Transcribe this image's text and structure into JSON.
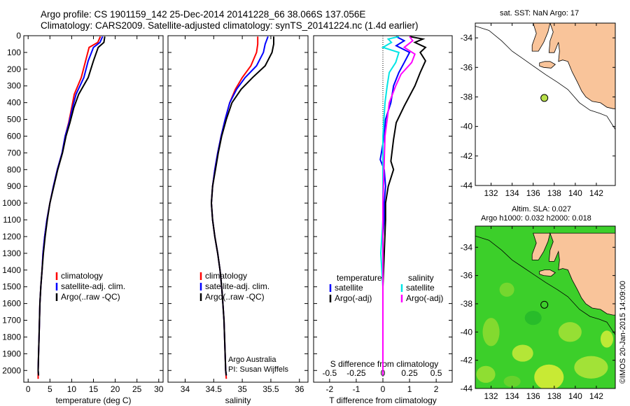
{
  "header": {
    "line1": "Argo profile: CS 1901159_142 25-Dec-2014 20141228_66 38.066S 137.056E",
    "line2": "Climatology: CARS2009. Satellite-adjusted climatology: synTS_20141224.nc (1.4d earlier)"
  },
  "credit": "©IMOS 20-Jan-2015 14:09:00",
  "colors": {
    "climatology": "#ff0000",
    "satellite": "#0000ff",
    "argo": "#000000",
    "cyan": "#00e5e5",
    "magenta": "#ff00ff",
    "land": "#f9c49a",
    "float": "#b8e04a"
  },
  "chart_data": [
    {
      "type": "line",
      "name": "temperature-profile",
      "xlabel": "temperature (deg C)",
      "xlim": [
        -1,
        31
      ],
      "ylim": [
        2070,
        0
      ],
      "xticks": [
        "0",
        "5",
        "10",
        "15",
        "20",
        "25",
        "30"
      ],
      "yticks": [
        "0",
        "100",
        "200",
        "300",
        "400",
        "500",
        "600",
        "700",
        "800",
        "900",
        "1000",
        "1100",
        "1200",
        "1300",
        "1400",
        "1500",
        "1600",
        "1700",
        "1800",
        "1900",
        "2000"
      ],
      "legend": [
        "climatology",
        "satellite-adj. clim.",
        "Argo(..raw -QC)"
      ],
      "series": [
        {
          "name": "climatology",
          "color": "#ff0000",
          "points": [
            [
              16.6,
              5
            ],
            [
              16.0,
              40
            ],
            [
              14.0,
              70
            ],
            [
              13.2,
              150
            ],
            [
              12.2,
              250
            ],
            [
              10.6,
              350
            ],
            [
              10.0,
              430
            ],
            [
              9.3,
              520
            ],
            [
              8.5,
              600
            ],
            [
              7.8,
              700
            ],
            [
              6.7,
              800
            ],
            [
              5.8,
              900
            ],
            [
              5.0,
              1000
            ],
            [
              4.3,
              1100
            ],
            [
              3.8,
              1200
            ],
            [
              3.4,
              1300
            ],
            [
              3.2,
              1400
            ],
            [
              2.9,
              1500
            ],
            [
              2.7,
              1600
            ],
            [
              2.6,
              1700
            ],
            [
              2.5,
              1800
            ],
            [
              2.4,
              1900
            ],
            [
              2.3,
              2000
            ],
            [
              2.3,
              2050
            ]
          ]
        },
        {
          "name": "satellite-adj. clim.",
          "color": "#0000ff",
          "points": [
            [
              17.1,
              5
            ],
            [
              16.5,
              40
            ],
            [
              15.0,
              70
            ],
            [
              13.8,
              150
            ],
            [
              12.8,
              250
            ],
            [
              11.0,
              350
            ],
            [
              10.2,
              430
            ],
            [
              9.4,
              520
            ],
            [
              8.5,
              600
            ],
            [
              7.8,
              700
            ],
            [
              6.7,
              800
            ],
            [
              5.8,
              900
            ],
            [
              5.0,
              1000
            ],
            [
              4.3,
              1100
            ],
            [
              3.8,
              1200
            ],
            [
              3.4,
              1300
            ],
            [
              3.2,
              1400
            ],
            [
              2.9,
              1500
            ],
            [
              2.7,
              1600
            ],
            [
              2.6,
              1700
            ],
            [
              2.5,
              1800
            ],
            [
              2.4,
              1900
            ],
            [
              2.3,
              2000
            ],
            [
              2.4,
              2030
            ]
          ]
        },
        {
          "name": "Argo(..raw -QC)",
          "color": "#000000",
          "points": [
            [
              17.6,
              5
            ],
            [
              17.4,
              40
            ],
            [
              16.1,
              70
            ],
            [
              15.0,
              150
            ],
            [
              13.8,
              250
            ],
            [
              11.6,
              350
            ],
            [
              10.5,
              430
            ],
            [
              9.6,
              520
            ],
            [
              8.7,
              600
            ],
            [
              7.9,
              700
            ],
            [
              6.8,
              800
            ],
            [
              5.9,
              900
            ],
            [
              5.0,
              1000
            ],
            [
              4.4,
              1100
            ],
            [
              3.9,
              1200
            ],
            [
              3.5,
              1300
            ],
            [
              3.2,
              1400
            ],
            [
              2.9,
              1500
            ],
            [
              2.7,
              1600
            ],
            [
              2.6,
              1700
            ],
            [
              2.5,
              1800
            ],
            [
              2.4,
              1900
            ],
            [
              2.3,
              2000
            ],
            [
              2.4,
              2030
            ]
          ]
        }
      ]
    },
    {
      "type": "line",
      "name": "salinity-profile",
      "xlabel": "salinity",
      "xlim": [
        33.7,
        36.15
      ],
      "ylim": [
        2070,
        0
      ],
      "xticks": [
        "34",
        "34.5",
        "35",
        "35.5",
        "36"
      ],
      "legend": [
        "climatology",
        "satellite-adj. clim.",
        "Argo(..raw -QC)"
      ],
      "annotation": [
        "Argo Australia",
        "PI: Susan Wijffels"
      ],
      "series": [
        {
          "name": "climatology",
          "color": "#ff0000",
          "points": [
            [
              35.27,
              5
            ],
            [
              35.27,
              50
            ],
            [
              35.25,
              100
            ],
            [
              35.15,
              180
            ],
            [
              35.0,
              250
            ],
            [
              34.88,
              320
            ],
            [
              34.78,
              400
            ],
            [
              34.7,
              500
            ],
            [
              34.63,
              600
            ],
            [
              34.57,
              700
            ],
            [
              34.52,
              800
            ],
            [
              34.48,
              900
            ],
            [
              34.46,
              1000
            ],
            [
              34.48,
              1100
            ],
            [
              34.52,
              1200
            ],
            [
              34.57,
              1300
            ],
            [
              34.61,
              1400
            ],
            [
              34.64,
              1500
            ],
            [
              34.66,
              1600
            ],
            [
              34.68,
              1700
            ],
            [
              34.69,
              1800
            ],
            [
              34.7,
              1900
            ],
            [
              34.71,
              2000
            ],
            [
              34.72,
              2050
            ]
          ]
        },
        {
          "name": "satellite-adj. clim.",
          "color": "#0000ff",
          "points": [
            [
              35.45,
              5
            ],
            [
              35.4,
              50
            ],
            [
              35.37,
              100
            ],
            [
              35.25,
              180
            ],
            [
              35.05,
              250
            ],
            [
              34.9,
              320
            ],
            [
              34.78,
              400
            ],
            [
              34.7,
              500
            ],
            [
              34.63,
              600
            ],
            [
              34.57,
              700
            ],
            [
              34.52,
              800
            ],
            [
              34.48,
              900
            ],
            [
              34.46,
              1000
            ],
            [
              34.48,
              1100
            ],
            [
              34.52,
              1200
            ],
            [
              34.57,
              1300
            ],
            [
              34.61,
              1400
            ],
            [
              34.64,
              1500
            ],
            [
              34.66,
              1600
            ],
            [
              34.68,
              1700
            ],
            [
              34.69,
              1800
            ],
            [
              34.7,
              1900
            ],
            [
              34.71,
              2000
            ],
            [
              34.72,
              2030
            ]
          ]
        },
        {
          "name": "Argo(..raw -QC)",
          "color": "#000000",
          "points": [
            [
              35.55,
              5
            ],
            [
              35.55,
              50
            ],
            [
              35.52,
              100
            ],
            [
              35.4,
              180
            ],
            [
              35.18,
              250
            ],
            [
              34.98,
              320
            ],
            [
              34.82,
              400
            ],
            [
              34.72,
              500
            ],
            [
              34.64,
              600
            ],
            [
              34.58,
              700
            ],
            [
              34.53,
              800
            ],
            [
              34.48,
              900
            ],
            [
              34.46,
              1000
            ],
            [
              34.48,
              1100
            ],
            [
              34.52,
              1200
            ],
            [
              34.57,
              1300
            ],
            [
              34.61,
              1400
            ],
            [
              34.64,
              1500
            ],
            [
              34.66,
              1600
            ],
            [
              34.68,
              1700
            ],
            [
              34.69,
              1800
            ],
            [
              34.7,
              1900
            ],
            [
              34.71,
              2000
            ],
            [
              34.72,
              2030
            ]
          ]
        }
      ]
    },
    {
      "type": "line",
      "name": "difference-profile",
      "xlabel": "T difference from climatology",
      "xlabel2": "S difference from climatology",
      "xlim": [
        -2.6,
        2.6
      ],
      "ylim": [
        2070,
        0
      ],
      "xticks": [
        "-2",
        "-1",
        "0",
        "1",
        "2"
      ],
      "xticks2": [
        "-0.5",
        "-0.25",
        "0",
        "0.25",
        "0.5"
      ],
      "legend_left_title": "temperature",
      "legend_left": [
        "satellite",
        "Argo(-adj)"
      ],
      "legend_right_title": "salinity",
      "legend_right": [
        "satellite",
        "Argo(-adj)"
      ],
      "series": [
        {
          "name": "temperature satellite",
          "color": "#0000ff",
          "points": [
            [
              0.5,
              5
            ],
            [
              0.8,
              30
            ],
            [
              0.5,
              60
            ],
            [
              1.0,
              100
            ],
            [
              0.8,
              160
            ],
            [
              0.6,
              220
            ],
            [
              0.4,
              300
            ],
            [
              0.3,
              400
            ],
            [
              0.1,
              500
            ],
            [
              0.05,
              600
            ],
            [
              -0.1,
              740
            ],
            [
              0.05,
              800
            ],
            [
              0.1,
              900
            ],
            [
              0.05,
              1000
            ],
            [
              0.05,
              1100
            ],
            [
              0.0,
              1200
            ],
            [
              0.0,
              1500
            ],
            [
              0.0,
              2000
            ],
            [
              0.0,
              2030
            ]
          ]
        },
        {
          "name": "temperature Argo(-adj)",
          "color": "#000000",
          "points": [
            [
              1.0,
              5
            ],
            [
              1.5,
              20
            ],
            [
              1.2,
              40
            ],
            [
              1.6,
              70
            ],
            [
              1.4,
              100
            ],
            [
              1.6,
              150
            ],
            [
              1.4,
              220
            ],
            [
              1.2,
              300
            ],
            [
              0.8,
              420
            ],
            [
              0.5,
              520
            ],
            [
              0.4,
              620
            ],
            [
              0.3,
              750
            ],
            [
              0.4,
              800
            ],
            [
              0.2,
              900
            ],
            [
              0.1,
              1000
            ],
            [
              0.1,
              1100
            ],
            [
              0.05,
              1300
            ],
            [
              0.0,
              1500
            ],
            [
              0.0,
              2000
            ],
            [
              0.0,
              2030
            ]
          ]
        },
        {
          "name": "salinity satellite",
          "color": "#00e5e5",
          "points": [
            [
              0.15,
              5
            ],
            [
              0.05,
              20
            ],
            [
              0.08,
              40
            ],
            [
              0.0,
              70
            ],
            [
              0.15,
              100
            ],
            [
              0.12,
              160
            ],
            [
              0.06,
              220
            ],
            [
              0.04,
              300
            ],
            [
              0.02,
              400
            ],
            [
              0.0,
              600
            ],
            [
              0.0,
              900
            ],
            [
              0.0,
              1100
            ],
            [
              -0.02,
              1300
            ],
            [
              0.0,
              1500
            ],
            [
              0.0,
              2000
            ],
            [
              0.0,
              2030
            ]
          ]
        },
        {
          "name": "salinity Argo(-adj)",
          "color": "#ff00ff",
          "points": [
            [
              0.25,
              5
            ],
            [
              0.28,
              30
            ],
            [
              0.2,
              70
            ],
            [
              0.3,
              110
            ],
            [
              0.27,
              160
            ],
            [
              0.17,
              230
            ],
            [
              0.12,
              300
            ],
            [
              0.06,
              400
            ],
            [
              0.04,
              500
            ],
            [
              0.02,
              600
            ],
            [
              0.01,
              800
            ],
            [
              0.0,
              1000
            ],
            [
              0.0,
              1500
            ],
            [
              0.0,
              2000
            ],
            [
              0.0,
              2030
            ]
          ]
        }
      ]
    },
    {
      "type": "map",
      "name": "sst-map",
      "title": "sat. SST: NaN Argo: 17",
      "xlim": [
        130.5,
        143.8
      ],
      "ylim": [
        -44,
        -33
      ],
      "xticks": [
        "132",
        "134",
        "136",
        "138",
        "140",
        "142"
      ],
      "yticks": [
        "-34",
        "-36",
        "-38",
        "-40",
        "-42",
        "-44"
      ],
      "float_position": [
        137.06,
        -38.07
      ]
    },
    {
      "type": "heatmap",
      "name": "sla-map",
      "title": "Altim. SLA: 0.027",
      "subtitle": "Argo h1000: 0.032 h2000: 0.018",
      "xlim": [
        130.5,
        143.8
      ],
      "ylim": [
        -44,
        -32.5
      ],
      "xticks": [
        "132",
        "134",
        "136",
        "138",
        "140",
        "142"
      ],
      "yticks": [
        "-34",
        "-36",
        "-38",
        "-40",
        "-42",
        "-44"
      ],
      "float_position": [
        137.06,
        -38.07
      ]
    }
  ]
}
